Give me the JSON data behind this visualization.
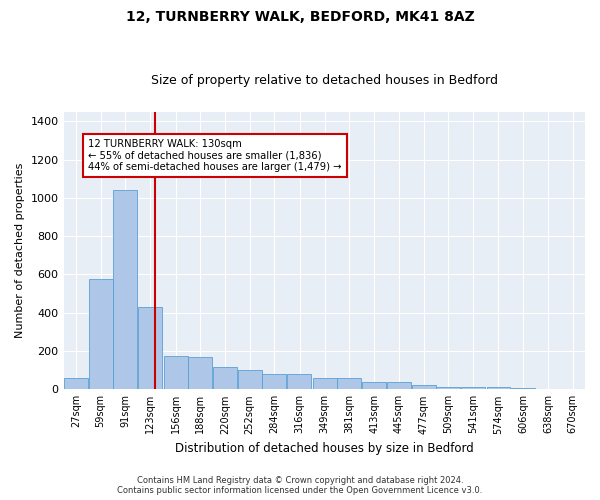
{
  "title1": "12, TURNBERRY WALK, BEDFORD, MK41 8AZ",
  "title2": "Size of property relative to detached houses in Bedford",
  "xlabel": "Distribution of detached houses by size in Bedford",
  "ylabel": "Number of detached properties",
  "footer1": "Contains HM Land Registry data © Crown copyright and database right 2024.",
  "footer2": "Contains public sector information licensed under the Open Government Licence v3.0.",
  "annotation_line1": "12 TURNBERRY WALK: 130sqm",
  "annotation_line2": "← 55% of detached houses are smaller (1,836)",
  "annotation_line3": "44% of semi-detached houses are larger (1,479) →",
  "bar_color": "#aec6e8",
  "bar_edge_color": "#5a9fd4",
  "highlight_color": "#cc0000",
  "background_color": "#e8eef5",
  "property_sqm": 130,
  "categories": [
    "27sqm",
    "59sqm",
    "91sqm",
    "123sqm",
    "156sqm",
    "188sqm",
    "220sqm",
    "252sqm",
    "284sqm",
    "316sqm",
    "349sqm",
    "381sqm",
    "413sqm",
    "445sqm",
    "477sqm",
    "509sqm",
    "541sqm",
    "574sqm",
    "606sqm",
    "638sqm",
    "670sqm"
  ],
  "bin_edges": [
    11,
    43,
    75,
    107,
    140,
    172,
    204,
    236,
    268,
    300,
    333,
    365,
    397,
    429,
    461,
    493,
    525,
    558,
    590,
    622,
    654,
    686
  ],
  "values": [
    57,
    575,
    1040,
    430,
    175,
    170,
    115,
    100,
    80,
    80,
    60,
    60,
    40,
    40,
    20,
    10,
    10,
    10,
    5,
    3,
    2
  ],
  "ylim": [
    0,
    1450
  ],
  "yticks": [
    0,
    200,
    400,
    600,
    800,
    1000,
    1200,
    1400
  ]
}
